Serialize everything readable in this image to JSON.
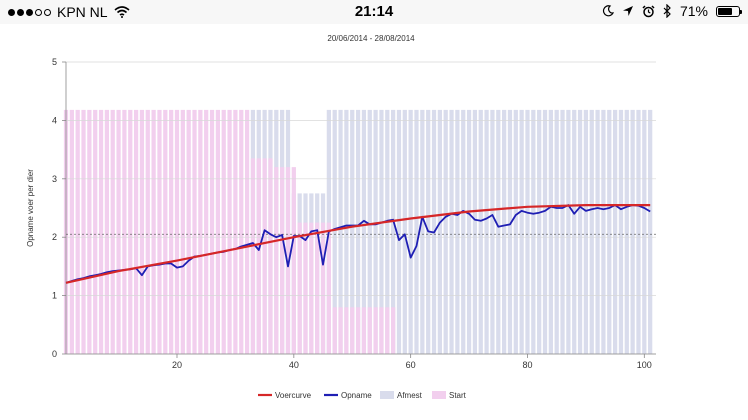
{
  "status_bar": {
    "carrier": "KPN NL",
    "time": "21:14",
    "battery": "71%",
    "battery_level": 0.71,
    "signal_bars_filled": 3,
    "signal_bars_total": 5,
    "icons": [
      "wifi-icon",
      "moon-icon",
      "location-arrow-icon",
      "alarm-icon",
      "bluetooth-icon",
      "battery-icon"
    ]
  },
  "chart_data": {
    "type": "line",
    "subtitle": "20/06/2014 - 28/08/2014",
    "ylabel": "Opname voer per dier",
    "xlim": [
      1,
      102
    ],
    "ylim": [
      0,
      5
    ],
    "xticks": [
      20,
      40,
      60,
      80,
      100
    ],
    "yticks": [
      0,
      1,
      2,
      3,
      4,
      5
    ],
    "grid": true,
    "legend_position": "bottom",
    "reference_line": 2.05,
    "series": [
      {
        "name": "Voercurve",
        "kind": "line",
        "color": "#d62728",
        "x": [
          1,
          10,
          20,
          30,
          40,
          50,
          60,
          70,
          80,
          90,
          101
        ],
        "values": [
          1.22,
          1.42,
          1.6,
          1.8,
          2.0,
          2.18,
          2.32,
          2.44,
          2.52,
          2.55,
          2.55
        ]
      },
      {
        "name": "Opname",
        "kind": "line",
        "color": "#1f1fb4",
        "x": [
          1,
          2,
          3,
          4,
          5,
          6,
          7,
          8,
          9,
          10,
          11,
          12,
          13,
          14,
          15,
          16,
          17,
          18,
          19,
          20,
          21,
          22,
          23,
          24,
          25,
          26,
          27,
          28,
          29,
          30,
          31,
          32,
          33,
          34,
          35,
          36,
          37,
          38,
          39,
          40,
          41,
          42,
          43,
          44,
          45,
          46,
          47,
          48,
          49,
          50,
          51,
          52,
          53,
          54,
          55,
          56,
          57,
          58,
          59,
          60,
          61,
          62,
          63,
          64,
          65,
          66,
          67,
          68,
          69,
          70,
          71,
          72,
          73,
          74,
          75,
          76,
          77,
          78,
          79,
          80,
          81,
          82,
          83,
          84,
          85,
          86,
          87,
          88,
          89,
          90,
          91,
          92,
          93,
          94,
          95,
          96,
          97,
          98,
          99,
          100,
          101
        ],
        "values": [
          1.22,
          1.25,
          1.28,
          1.3,
          1.33,
          1.35,
          1.37,
          1.4,
          1.42,
          1.43,
          1.44,
          1.45,
          1.47,
          1.35,
          1.5,
          1.52,
          1.53,
          1.55,
          1.55,
          1.48,
          1.5,
          1.6,
          1.67,
          1.68,
          1.7,
          1.72,
          1.74,
          1.75,
          1.78,
          1.8,
          1.84,
          1.87,
          1.9,
          1.78,
          2.12,
          2.05,
          2.0,
          2.04,
          1.5,
          2.02,
          2.02,
          1.95,
          2.1,
          2.12,
          1.53,
          2.1,
          2.14,
          2.17,
          2.2,
          2.2,
          2.2,
          2.28,
          2.22,
          2.22,
          2.25,
          2.28,
          2.3,
          1.95,
          2.05,
          1.65,
          1.85,
          2.35,
          2.1,
          2.08,
          2.25,
          2.35,
          2.4,
          2.38,
          2.45,
          2.4,
          2.3,
          2.28,
          2.32,
          2.38,
          2.18,
          2.2,
          2.22,
          2.38,
          2.45,
          2.42,
          2.4,
          2.42,
          2.45,
          2.52,
          2.5,
          2.5,
          2.55,
          2.4,
          2.52,
          2.45,
          2.48,
          2.5,
          2.48,
          2.5,
          2.55,
          2.48,
          2.52,
          2.55,
          2.54,
          2.5,
          2.44
        ]
      },
      {
        "name": "Afmest",
        "kind": "bar",
        "color": "#d9dcec",
        "x_range": [
          33,
          101
        ],
        "values": [
          [
            33,
            4.18
          ],
          [
            40,
            2.75
          ],
          [
            46,
            4.18
          ],
          [
            101,
            4.18
          ]
        ]
      },
      {
        "name": "Start",
        "kind": "bar",
        "color": "#f2cfee",
        "x_range": [
          1,
          57
        ],
        "values": [
          [
            1,
            4.18
          ],
          [
            32,
            4.18
          ],
          [
            33,
            3.35
          ],
          [
            37,
            3.2
          ],
          [
            41,
            2.25
          ],
          [
            47,
            0.8
          ],
          [
            57,
            0.8
          ]
        ]
      }
    ]
  }
}
